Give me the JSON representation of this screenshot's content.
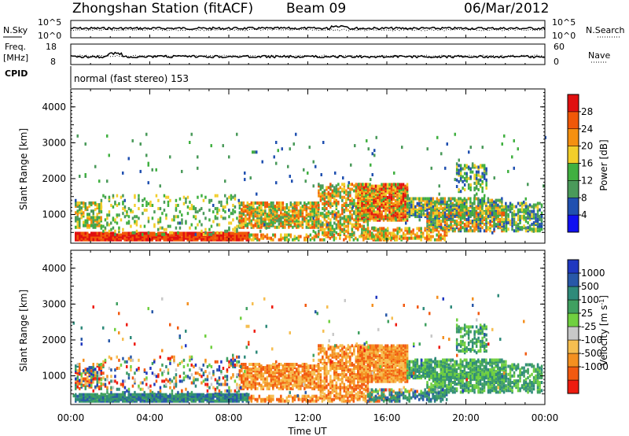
{
  "header": {
    "station": "Zhongshan Station (fitACF)",
    "beam": "Beam 09",
    "date": "06/Mar/2012"
  },
  "top_panels": {
    "nsky": {
      "label": "N.Sky",
      "tick_high": "10^5",
      "tick_low": "10^0",
      "right_label": "N.Search",
      "right_high": "10^5",
      "right_low": "10^0"
    },
    "freq": {
      "label_line1": "Freq.",
      "label_line2": "[MHz]",
      "tick_high": "18",
      "tick_low": "8",
      "right_label": "Nave",
      "right_high": "60",
      "right_low": "0"
    },
    "cpid": {
      "label": "CPID",
      "mode": "normal (fast stereo) 153"
    }
  },
  "colors": {
    "power_scale": [
      "#1010f0",
      "#2050b0",
      "#4a9a5a",
      "#40b040",
      "#f2ce2a",
      "#f59010",
      "#f05808",
      "#e01010"
    ],
    "velocity_scale": [
      "#ee1c10",
      "#f25a10",
      "#f49020",
      "#f6be50",
      "#c8c8c8",
      "#70d040",
      "#40a060",
      "#2e8a7a",
      "#2858a8",
      "#2038c0"
    ]
  },
  "chart_data": [
    {
      "type": "heatmap",
      "panel": "power",
      "x_label": "",
      "y_label": "Slant Range [km]",
      "y_ticks": [
        "1000",
        "2000",
        "3000",
        "4000"
      ],
      "ylim": [
        200,
        4500
      ],
      "x_range_hours": [
        0,
        24
      ],
      "colorbar_label": "Power [dB]",
      "colorbar_ticks": [
        "4",
        "8",
        "12",
        "16",
        "20",
        "24",
        "28"
      ],
      "colorbar_range": [
        0,
        32
      ]
    },
    {
      "type": "heatmap",
      "panel": "velocity",
      "x_label": "Time UT",
      "x_ticks": [
        "00:00",
        "04:00",
        "08:00",
        "12:00",
        "16:00",
        "20:00",
        "00:00"
      ],
      "y_label": "Slant Range [km]",
      "y_ticks": [
        "1000",
        "2000",
        "3000",
        "4000"
      ],
      "ylim": [
        200,
        4500
      ],
      "x_range_hours": [
        0,
        24
      ],
      "colorbar_label": "Velocity [m s-1]",
      "colorbar_ticks": [
        "1000",
        "500",
        "100",
        "25",
        "-25",
        "-100",
        "-500",
        "-1000"
      ]
    }
  ]
}
